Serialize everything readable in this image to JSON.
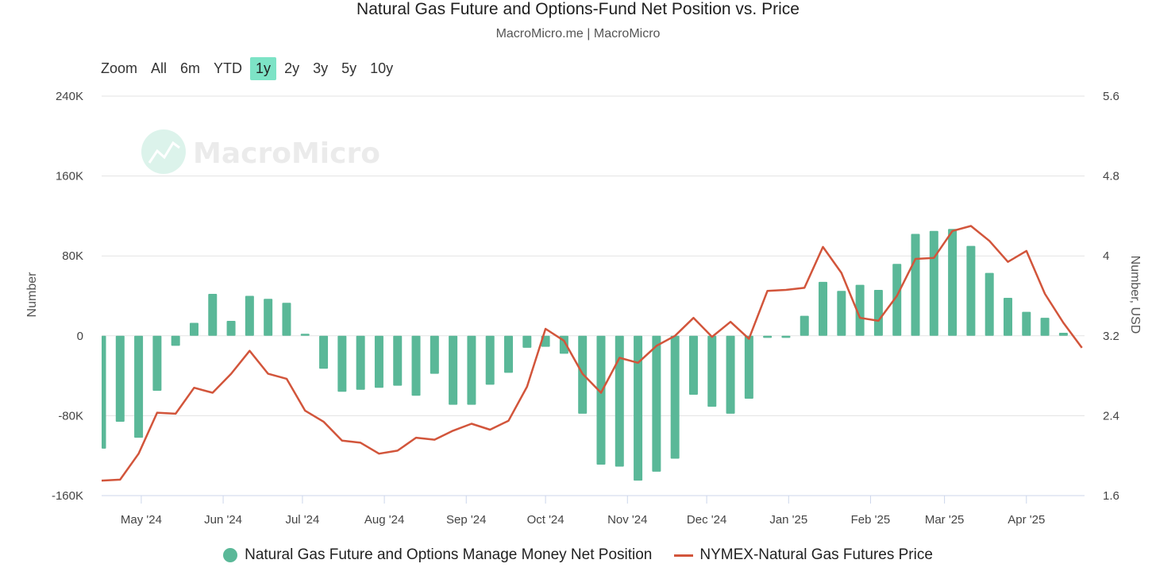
{
  "chart_data": {
    "type": "bar+line",
    "title": "Natural Gas Future and Options-Fund Net Position vs. Price",
    "subtitle": "MacroMicro.me | MacroMicro",
    "ylabel_left": "Number",
    "ylabel_right": "Number, USD",
    "ylim_left": [
      -160000,
      240000
    ],
    "ylim_right": [
      1.6,
      5.6
    ],
    "yticks_left": [
      "240K",
      "160K",
      "80K",
      "0",
      "-80K",
      "-160K"
    ],
    "yticks_right": [
      "5.6",
      "4.8",
      "4",
      "3.2",
      "2.4",
      "1.6"
    ],
    "x_range": [
      "2024-04-16",
      "2025-04-23"
    ],
    "xticks": [
      {
        "date": "2024-05-01",
        "label": "May '24"
      },
      {
        "date": "2024-06-01",
        "label": "Jun '24"
      },
      {
        "date": "2024-07-01",
        "label": "Jul '24"
      },
      {
        "date": "2024-08-01",
        "label": "Aug '24"
      },
      {
        "date": "2024-09-01",
        "label": "Sep '24"
      },
      {
        "date": "2024-10-01",
        "label": "Oct '24"
      },
      {
        "date": "2024-11-01",
        "label": "Nov '24"
      },
      {
        "date": "2024-12-01",
        "label": "Dec '24"
      },
      {
        "date": "2025-01-01",
        "label": "Jan '25"
      },
      {
        "date": "2025-02-01",
        "label": "Feb '25"
      },
      {
        "date": "2025-03-01",
        "label": "Mar '25"
      },
      {
        "date": "2025-04-01",
        "label": "Apr '25"
      }
    ],
    "series": [
      {
        "name": "Natural Gas Future and Options Manage Money Net Position",
        "type": "bar",
        "axis": "left",
        "color": "#5ab898",
        "dates": [
          "2024-04-16",
          "2024-04-23",
          "2024-04-30",
          "2024-05-07",
          "2024-05-14",
          "2024-05-21",
          "2024-05-28",
          "2024-06-04",
          "2024-06-11",
          "2024-06-18",
          "2024-06-25",
          "2024-07-02",
          "2024-07-09",
          "2024-07-16",
          "2024-07-23",
          "2024-07-30",
          "2024-08-06",
          "2024-08-13",
          "2024-08-20",
          "2024-08-27",
          "2024-09-03",
          "2024-09-10",
          "2024-09-17",
          "2024-09-24",
          "2024-10-01",
          "2024-10-08",
          "2024-10-15",
          "2024-10-22",
          "2024-10-29",
          "2024-11-05",
          "2024-11-12",
          "2024-11-19",
          "2024-11-26",
          "2024-12-03",
          "2024-12-10",
          "2024-12-17",
          "2024-12-24",
          "2024-12-31",
          "2025-01-07",
          "2025-01-14",
          "2025-01-21",
          "2025-01-28",
          "2025-02-04",
          "2025-02-11",
          "2025-02-18",
          "2025-02-25",
          "2025-03-04",
          "2025-03-11",
          "2025-03-18",
          "2025-03-25",
          "2025-04-01",
          "2025-04-08",
          "2025-04-15"
        ],
        "values": [
          -113000,
          -86000,
          -102000,
          -55000,
          -10000,
          13000,
          42000,
          15000,
          40000,
          37000,
          33000,
          2000,
          -33000,
          -56000,
          -54000,
          -52000,
          -50000,
          -60000,
          -38000,
          -69000,
          -69000,
          -49000,
          -37000,
          -12000,
          -11000,
          -18000,
          -78000,
          -129000,
          -131000,
          -145000,
          -136000,
          -123000,
          -59000,
          -71000,
          -78000,
          -63000,
          -2000,
          -2000,
          20000,
          54000,
          45000,
          51000,
          46000,
          72000,
          102000,
          105000,
          107000,
          90000,
          63000,
          38000,
          24000,
          18000,
          3000
        ]
      },
      {
        "name": "NYMEX-Natural Gas Futures Price",
        "type": "line",
        "axis": "right",
        "color": "#d2553b",
        "dates": [
          "2024-04-16",
          "2024-04-23",
          "2024-04-30",
          "2024-05-07",
          "2024-05-14",
          "2024-05-21",
          "2024-05-28",
          "2024-06-04",
          "2024-06-11",
          "2024-06-18",
          "2024-06-25",
          "2024-07-02",
          "2024-07-09",
          "2024-07-16",
          "2024-07-23",
          "2024-07-30",
          "2024-08-06",
          "2024-08-13",
          "2024-08-20",
          "2024-08-27",
          "2024-09-03",
          "2024-09-10",
          "2024-09-17",
          "2024-09-24",
          "2024-10-01",
          "2024-10-08",
          "2024-10-15",
          "2024-10-22",
          "2024-10-29",
          "2024-11-05",
          "2024-11-12",
          "2024-11-19",
          "2024-11-26",
          "2024-12-03",
          "2024-12-10",
          "2024-12-17",
          "2024-12-24",
          "2024-12-31",
          "2025-01-07",
          "2025-01-14",
          "2025-01-21",
          "2025-01-28",
          "2025-02-04",
          "2025-02-11",
          "2025-02-18",
          "2025-02-25",
          "2025-03-04",
          "2025-03-11",
          "2025-03-18",
          "2025-03-25",
          "2025-04-01",
          "2025-04-08",
          "2025-04-15",
          "2025-04-22"
        ],
        "values": [
          1.75,
          1.76,
          2.02,
          2.43,
          2.42,
          2.68,
          2.63,
          2.82,
          3.05,
          2.82,
          2.77,
          2.45,
          2.34,
          2.15,
          2.13,
          2.02,
          2.05,
          2.18,
          2.16,
          2.25,
          2.32,
          2.26,
          2.35,
          2.69,
          3.27,
          3.15,
          2.82,
          2.63,
          2.98,
          2.93,
          3.1,
          3.2,
          3.38,
          3.19,
          3.34,
          3.17,
          3.65,
          3.66,
          3.68,
          4.09,
          3.83,
          3.38,
          3.35,
          3.6,
          3.97,
          3.98,
          4.25,
          4.3,
          4.15,
          3.94,
          4.05,
          3.62,
          3.33,
          3.08
        ]
      }
    ],
    "grid": true,
    "legend_position": "bottom-center"
  },
  "header": {
    "title": "Natural Gas Future and Options-Fund Net Position vs. Price",
    "subtitle": "MacroMicro.me | MacroMicro"
  },
  "range_selector": {
    "zoom_label": "Zoom",
    "buttons": [
      "All",
      "6m",
      "YTD",
      "1y",
      "2y",
      "3y",
      "5y",
      "10y"
    ],
    "active": "1y",
    "active_color": "#7de3c6"
  },
  "legend": {
    "items": [
      {
        "label": "Natural Gas Future and Options Manage Money Net Position",
        "color": "#5ab898",
        "marker": "circle"
      },
      {
        "label": "NYMEX-Natural Gas Futures Price",
        "color": "#d2553b",
        "marker": "line"
      }
    ]
  },
  "watermark": {
    "text": "MacroMicro",
    "icon": "macromicro-logo-icon"
  }
}
